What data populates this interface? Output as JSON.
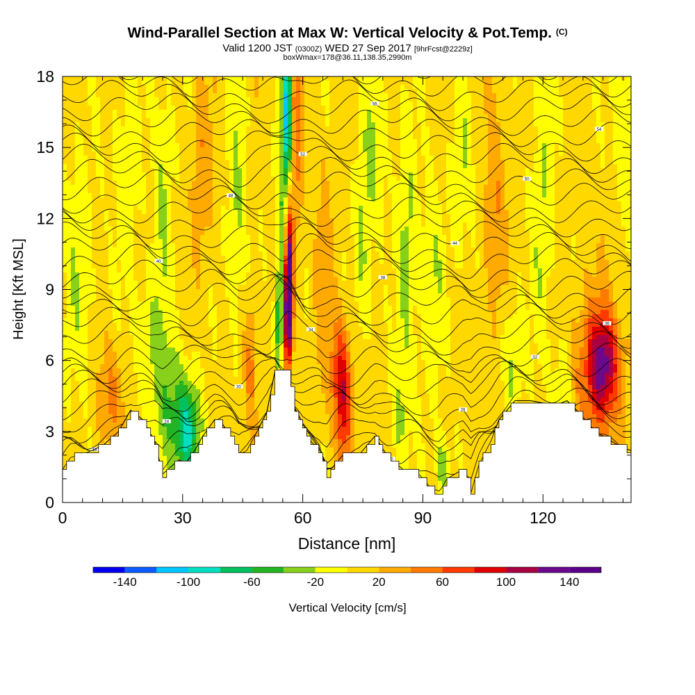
{
  "header": {
    "title": "Wind-Parallel Section at Max W: Vertical Velocity & Pot.Temp.",
    "copyright": "(C)",
    "subtitle_a": "Valid 1200 JST",
    "subtitle_b": "(0300Z)",
    "subtitle_c": "WED 27 Sep 2017",
    "subtitle_d": "[9hrFcst@2229z]",
    "line3": "boxWmax=178@36.11,138.35,2990m"
  },
  "chart_data": {
    "type": "heatmap",
    "xlabel": "Distance [nm]",
    "ylabel": "Height [Kft MSL]",
    "xlim": [
      0,
      142
    ],
    "ylim": [
      0,
      18
    ],
    "x_ticks": [
      0,
      30,
      60,
      90,
      120
    ],
    "y_ticks": [
      0,
      3,
      6,
      9,
      12,
      15,
      18
    ],
    "colorbar": {
      "label": "Vertical Velocity [cm/s]",
      "tick_values": [
        -140,
        -100,
        -60,
        -20,
        20,
        60,
        100,
        140
      ],
      "tick_labels": [
        "-140",
        "-100",
        "-60",
        "-20",
        "20",
        "60",
        "100",
        "140"
      ],
      "bins": [
        -160,
        -140,
        -120,
        -100,
        -80,
        -60,
        -40,
        -20,
        0,
        20,
        40,
        60,
        80,
        100,
        120,
        140,
        160
      ],
      "colors": [
        "#0000ee",
        "#0a5cff",
        "#00c8ff",
        "#00e0c0",
        "#00c060",
        "#22b422",
        "#88d01a",
        "#ffff00",
        "#ffd800",
        "#ffaa00",
        "#ff7a00",
        "#ff3a00",
        "#e00000",
        "#a80040",
        "#6a0a8a",
        "#5a008a"
      ]
    },
    "terrain_kft": [
      [
        0,
        1.4
      ],
      [
        2,
        1.9
      ],
      [
        6,
        2.1
      ],
      [
        10,
        2.4
      ],
      [
        14,
        3.0
      ],
      [
        17,
        3.9
      ],
      [
        20,
        3.5
      ],
      [
        23,
        2.6
      ],
      [
        25,
        1.2
      ],
      [
        27,
        1.5
      ],
      [
        29,
        1.8
      ],
      [
        31,
        1.7
      ],
      [
        33,
        2.2
      ],
      [
        35,
        2.8
      ],
      [
        38,
        3.5
      ],
      [
        40,
        3.3
      ],
      [
        42,
        2.8
      ],
      [
        44,
        2.0
      ],
      [
        46,
        2.2
      ],
      [
        48,
        2.8
      ],
      [
        51,
        3.8
      ],
      [
        53,
        5.5
      ],
      [
        56,
        5.5
      ],
      [
        58,
        4.0
      ],
      [
        60,
        3.0
      ],
      [
        62,
        2.6
      ],
      [
        64,
        2.2
      ],
      [
        66,
        1.1
      ],
      [
        68,
        1.6
      ],
      [
        70,
        2.0
      ],
      [
        74,
        2.0
      ],
      [
        78,
        2.8
      ],
      [
        81,
        2.0
      ],
      [
        85,
        1.4
      ],
      [
        89,
        1.2
      ],
      [
        92,
        0.6
      ],
      [
        94,
        0.4
      ],
      [
        96,
        1.0
      ],
      [
        100,
        1.4
      ],
      [
        102,
        0.4
      ],
      [
        104,
        1.6
      ],
      [
        107,
        2.6
      ],
      [
        109,
        3.5
      ],
      [
        113,
        4.3
      ],
      [
        117,
        4.3
      ],
      [
        120,
        4.2
      ],
      [
        123,
        4.1
      ],
      [
        126,
        4.3
      ],
      [
        129,
        3.8
      ],
      [
        133,
        3.0
      ],
      [
        137,
        2.6
      ],
      [
        140,
        2.3
      ],
      [
        142,
        2.2
      ]
    ],
    "w_features": [
      {
        "x": 56.5,
        "y": 9.5,
        "sx": 0.7,
        "sy": 2.0,
        "w": 145
      },
      {
        "x": 56.0,
        "y": 7.8,
        "sx": 1.0,
        "sy": 1.6,
        "w": 90
      },
      {
        "x": 58.3,
        "y": 15.5,
        "sx": 1.3,
        "sy": 3.2,
        "w": 45
      },
      {
        "x": 55.0,
        "y": 12.5,
        "sx": 1.0,
        "sy": 4.5,
        "w": -50
      },
      {
        "x": 56.3,
        "y": 16.5,
        "sx": 0.7,
        "sy": 2.2,
        "w": -120
      },
      {
        "x": 54.2,
        "y": 7.8,
        "sx": 0.8,
        "sy": 1.5,
        "w": -75
      },
      {
        "x": 31.5,
        "y": 3.0,
        "sx": 2.2,
        "sy": 1.5,
        "w": -80
      },
      {
        "x": 26.5,
        "y": 3.8,
        "sx": 3.0,
        "sy": 2.2,
        "w": -45
      },
      {
        "x": 21.0,
        "y": 7.0,
        "sx": 2.5,
        "sy": 1.6,
        "w": -30
      },
      {
        "x": 25.0,
        "y": 13.0,
        "sx": 1.8,
        "sy": 4.0,
        "w": -28
      },
      {
        "x": 43.5,
        "y": 12.5,
        "sx": 1.8,
        "sy": 4.0,
        "w": -30
      },
      {
        "x": 70.0,
        "y": 4.0,
        "sx": 1.5,
        "sy": 1.8,
        "w": 75
      },
      {
        "x": 69.0,
        "y": 6.0,
        "sx": 2.0,
        "sy": 1.5,
        "w": 40
      },
      {
        "x": 75.0,
        "y": 11.0,
        "sx": 1.5,
        "sy": 3.0,
        "w": -30
      },
      {
        "x": 86.0,
        "y": 10.5,
        "sx": 1.6,
        "sy": 4.0,
        "w": -35
      },
      {
        "x": 95.0,
        "y": 1.5,
        "sx": 1.2,
        "sy": 1.0,
        "w": -40
      },
      {
        "x": 92.0,
        "y": 9.0,
        "sx": 2.5,
        "sy": 3.5,
        "w": -25
      },
      {
        "x": 78.0,
        "y": 15.0,
        "sx": 2.0,
        "sy": 2.5,
        "w": -28
      },
      {
        "x": 135.0,
        "y": 5.8,
        "sx": 2.5,
        "sy": 1.5,
        "w": 85
      },
      {
        "x": 133.0,
        "y": 5.5,
        "sx": 5.0,
        "sy": 2.4,
        "w": 45
      },
      {
        "x": 125.0,
        "y": 5.0,
        "sx": 1.8,
        "sy": 1.5,
        "w": -35
      },
      {
        "x": 120.0,
        "y": 12.0,
        "sx": 2.0,
        "sy": 4.5,
        "w": -28
      },
      {
        "x": 108.0,
        "y": 12.0,
        "sx": 2.0,
        "sy": 3.5,
        "w": 32
      },
      {
        "x": 12.0,
        "y": 4.5,
        "sx": 2.5,
        "sy": 1.5,
        "w": 38
      },
      {
        "x": 16.0,
        "y": 14.0,
        "sx": 2.5,
        "sy": 3.0,
        "w": -22
      },
      {
        "x": 35.0,
        "y": 14.0,
        "sx": 1.8,
        "sy": 3.0,
        "w": 28
      },
      {
        "x": 47.0,
        "y": 6.0,
        "sx": 1.2,
        "sy": 2.0,
        "w": 40
      },
      {
        "x": 4.0,
        "y": 10.0,
        "sx": 3.0,
        "sy": 4.0,
        "w": -22
      },
      {
        "x": 100.0,
        "y": 14.0,
        "sx": 2.0,
        "sy": 3.0,
        "w": -24
      },
      {
        "x": 140.0,
        "y": 16.0,
        "sx": 2.0,
        "sy": 2.5,
        "w": -28
      },
      {
        "x": 112.0,
        "y": 6.0,
        "sx": 2.0,
        "sy": 2.0,
        "w": -30
      },
      {
        "x": 84.0,
        "y": 3.5,
        "sx": 1.5,
        "sy": 1.5,
        "w": -30
      },
      {
        "x": 65.0,
        "y": 10.0,
        "sx": 1.5,
        "sy": 3.0,
        "w": 26
      }
    ],
    "theta_contours": {
      "interval_K": 2,
      "labels_shown": true
    }
  }
}
